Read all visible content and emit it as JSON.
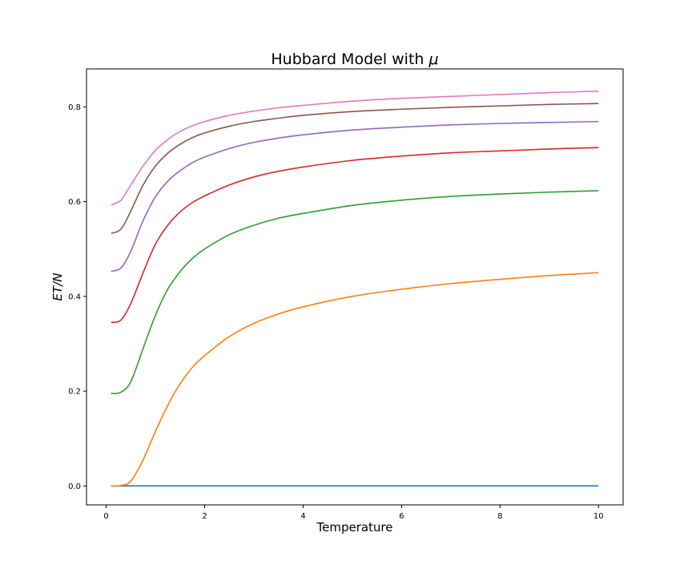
{
  "chart_data": {
    "type": "line",
    "title": "Hubbard Model with",
    "title_symbol": "μ",
    "xlabel": "Temperature",
    "ylabel": "ET/N",
    "xlim": [
      -0.4,
      10.5
    ],
    "ylim": [
      -0.04,
      0.88
    ],
    "xticks": [
      0,
      2,
      4,
      6,
      8,
      10
    ],
    "yticks": [
      0.0,
      0.2,
      0.4,
      0.6,
      0.8
    ],
    "xtick_labels": [
      "0",
      "2",
      "4",
      "6",
      "8",
      "10"
    ],
    "ytick_labels": [
      "0.0",
      "0.2",
      "0.4",
      "0.6",
      "0.8"
    ],
    "grid": false,
    "legend": "none",
    "x": [
      0.1,
      0.3,
      0.5,
      0.75,
      1.0,
      1.25,
      1.5,
      1.75,
      2.0,
      2.5,
      3.0,
      3.5,
      4.0,
      5.0,
      6.0,
      7.0,
      8.0,
      9.0,
      10.0
    ],
    "series": [
      {
        "color": "#1f77b4",
        "values": [
          0.0,
          0.0,
          0.0,
          0.0,
          0.0,
          0.0,
          0.0,
          0.0,
          0.0,
          0.0,
          0.0,
          0.0,
          0.0,
          0.0,
          0.0,
          0.0,
          0.0,
          0.0,
          0.0
        ]
      },
      {
        "color": "#ff7f0e",
        "values": [
          0.0,
          0.001,
          0.01,
          0.055,
          0.115,
          0.17,
          0.215,
          0.25,
          0.275,
          0.315,
          0.343,
          0.363,
          0.378,
          0.4,
          0.415,
          0.427,
          0.436,
          0.444,
          0.45
        ]
      },
      {
        "color": "#2ca02c",
        "values": [
          0.195,
          0.198,
          0.22,
          0.29,
          0.36,
          0.415,
          0.452,
          0.48,
          0.5,
          0.53,
          0.55,
          0.565,
          0.575,
          0.592,
          0.603,
          0.611,
          0.616,
          0.62,
          0.623
        ]
      },
      {
        "color": "#d62728",
        "values": [
          0.345,
          0.35,
          0.385,
          0.45,
          0.51,
          0.55,
          0.578,
          0.598,
          0.612,
          0.635,
          0.652,
          0.664,
          0.673,
          0.687,
          0.696,
          0.703,
          0.707,
          0.711,
          0.714
        ]
      },
      {
        "color": "#9467bd",
        "values": [
          0.453,
          0.46,
          0.495,
          0.56,
          0.61,
          0.643,
          0.665,
          0.682,
          0.694,
          0.712,
          0.725,
          0.734,
          0.741,
          0.751,
          0.757,
          0.762,
          0.765,
          0.767,
          0.769
        ]
      },
      {
        "color": "#8c564b",
        "values": [
          0.533,
          0.542,
          0.58,
          0.635,
          0.675,
          0.702,
          0.721,
          0.735,
          0.745,
          0.759,
          0.769,
          0.776,
          0.782,
          0.79,
          0.795,
          0.799,
          0.802,
          0.805,
          0.807
        ]
      },
      {
        "color": "#e377c2",
        "values": [
          0.593,
          0.603,
          0.635,
          0.675,
          0.708,
          0.731,
          0.748,
          0.76,
          0.769,
          0.782,
          0.791,
          0.798,
          0.803,
          0.812,
          0.818,
          0.822,
          0.826,
          0.83,
          0.833
        ]
      }
    ]
  }
}
